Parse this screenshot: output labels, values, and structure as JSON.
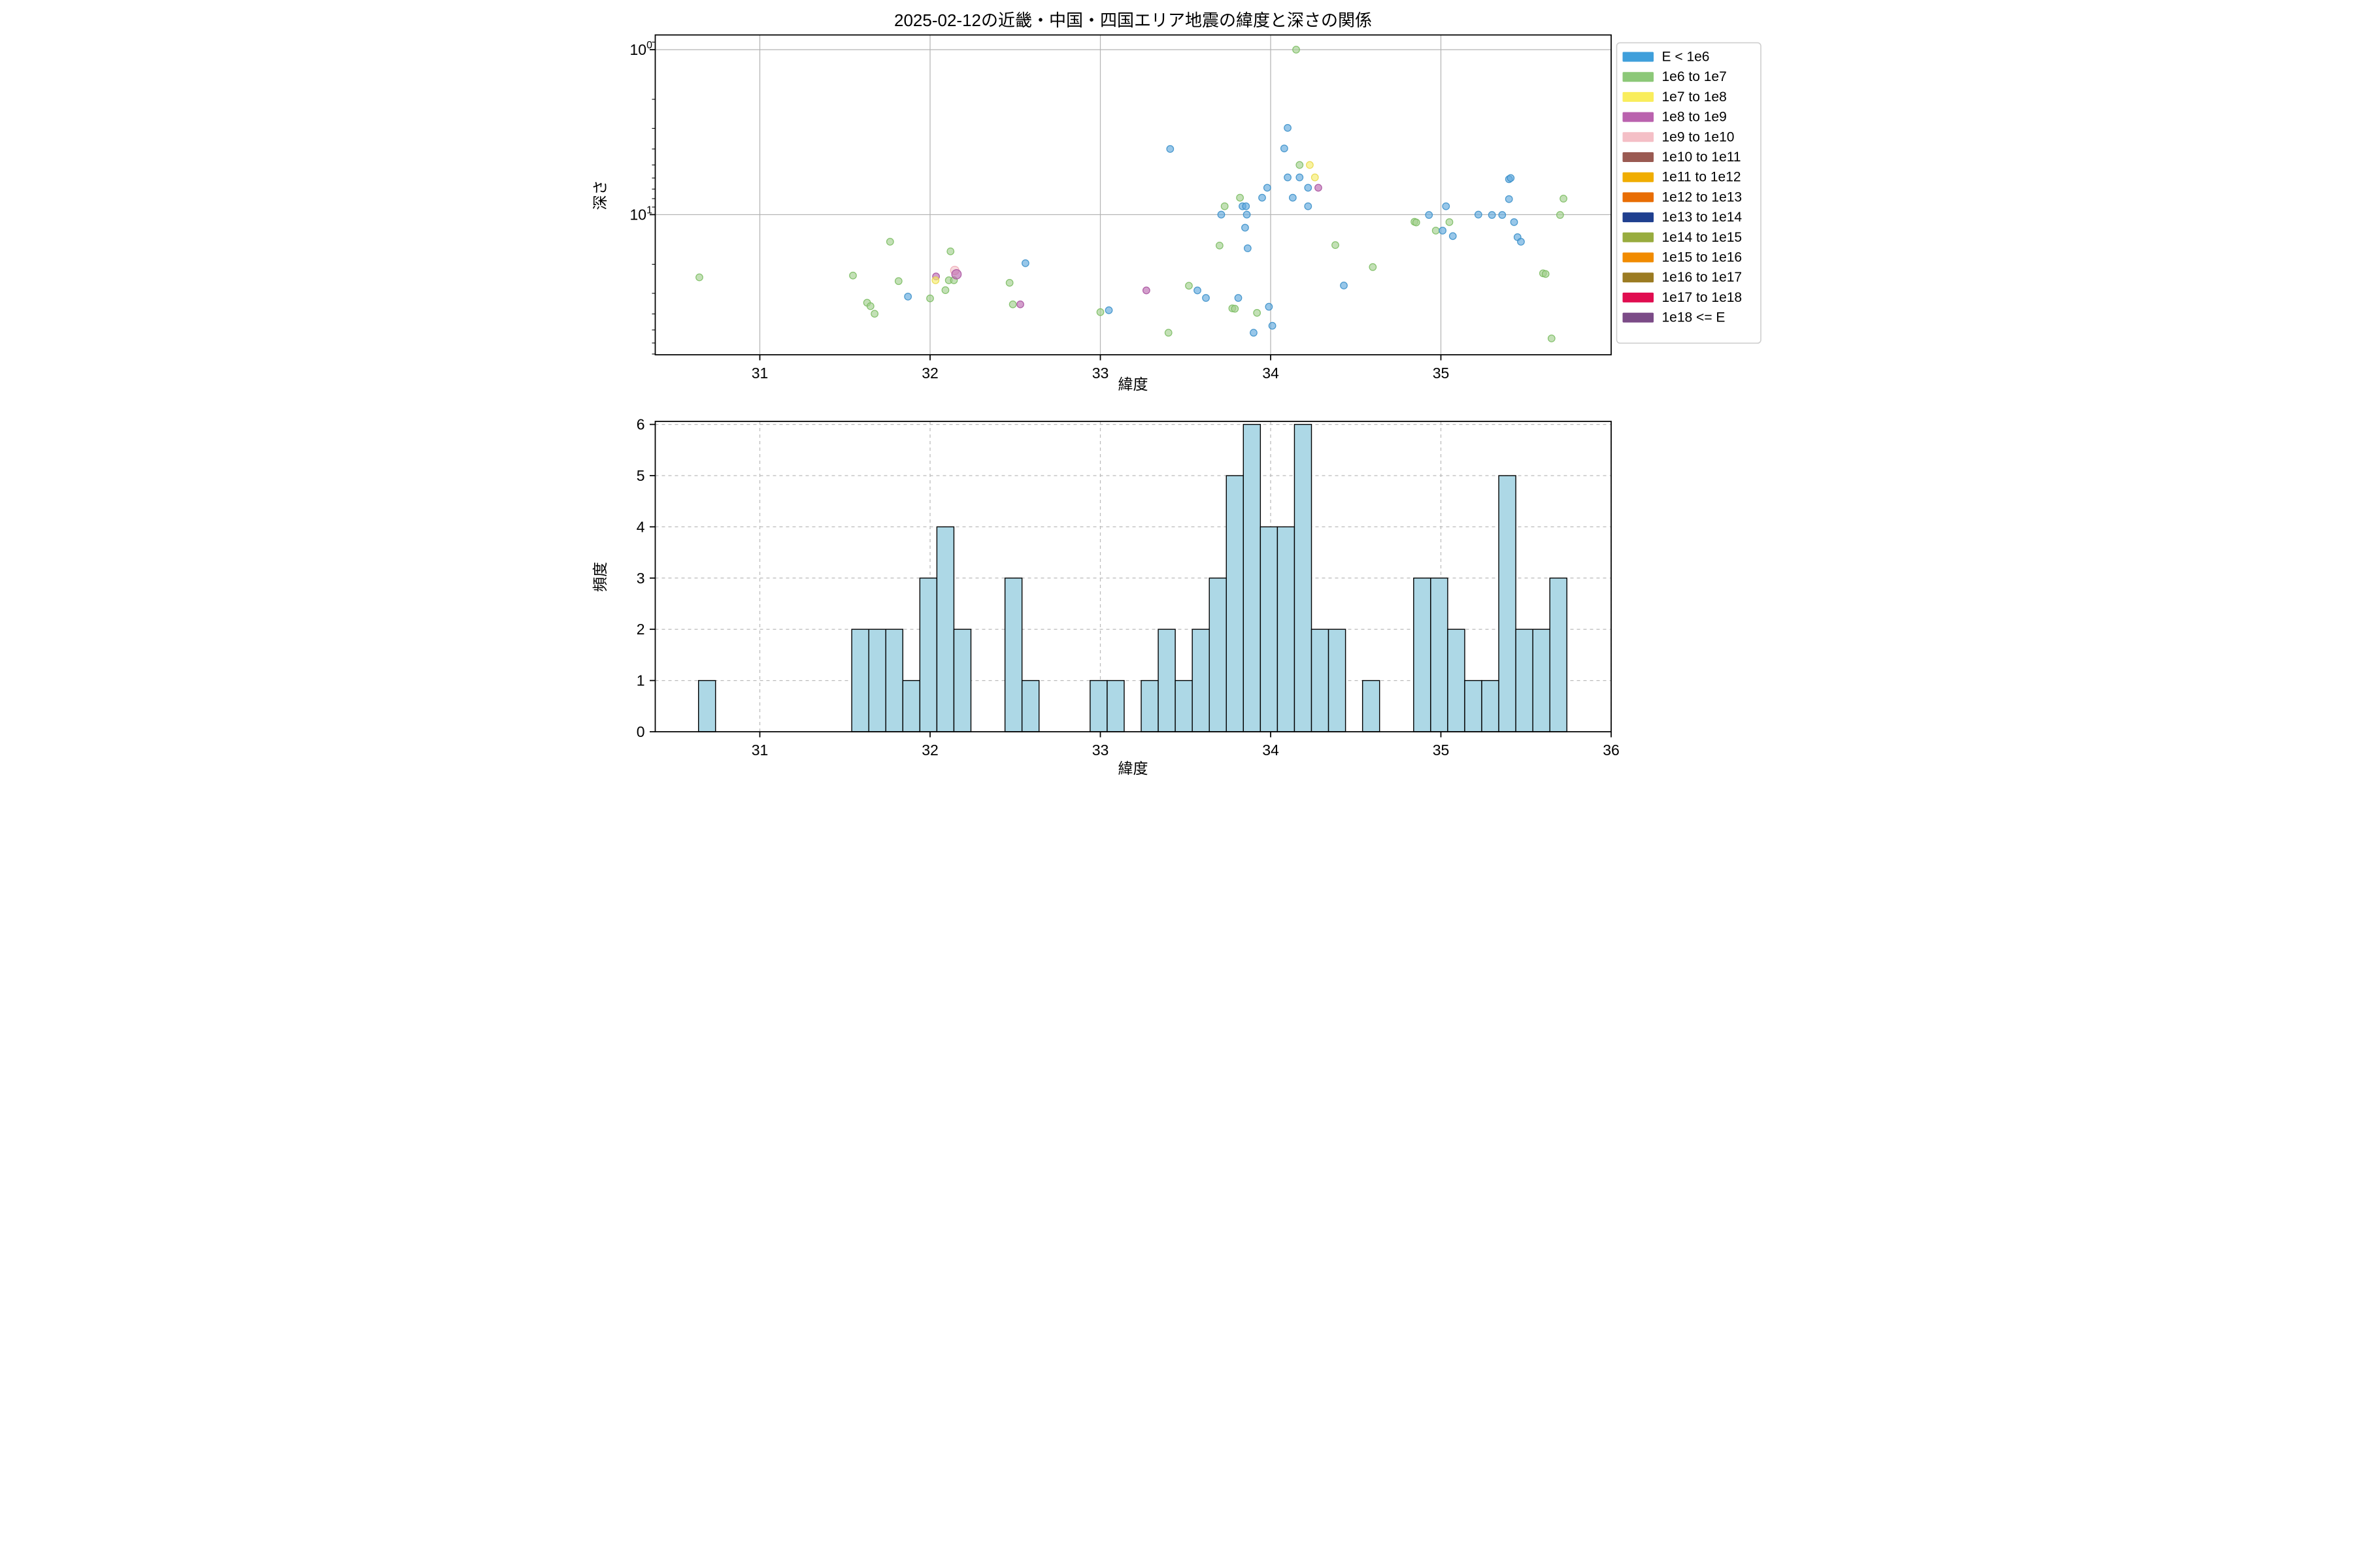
{
  "title": "2025-02-12の近畿・中国・四国エリア地震の緯度と深さの関係",
  "legend": {
    "items": [
      {
        "label": "E < 1e6",
        "color": "#3F9FDB"
      },
      {
        "label": "1e6 to 1e7",
        "color": "#8CC878"
      },
      {
        "label": "1e7 to 1e8",
        "color": "#F9ED5C"
      },
      {
        "label": "1e8 to 1e9",
        "color": "#BA62AE"
      },
      {
        "label": "1e9 to 1e10",
        "color": "#F4BFC6"
      },
      {
        "label": "1e10 to 1e11",
        "color": "#9A5A52"
      },
      {
        "label": "1e11 to 1e12",
        "color": "#F0AD01"
      },
      {
        "label": "1e12 to 1e13",
        "color": "#E86D04"
      },
      {
        "label": "1e13 to 1e14",
        "color": "#1F3F8F"
      },
      {
        "label": "1e14 to 1e15",
        "color": "#98AC3F"
      },
      {
        "label": "1e15 to 1e16",
        "color": "#F18B00"
      },
      {
        "label": "1e16 to 1e17",
        "color": "#9B7B22"
      },
      {
        "label": "1e17 to 1e18",
        "color": "#E00D50"
      },
      {
        "label": "1e18 <= E",
        "color": "#7B4B87"
      }
    ]
  },
  "marker_styles": {
    "b": {
      "label": "E < 1e6",
      "fill": "#61A9DD",
      "edge": "#3A8FC9"
    },
    "g": {
      "label": "1e6 to 1e7",
      "fill": "#A3D08F",
      "edge": "#7BBC62"
    },
    "y": {
      "label": "1e7 to 1e8",
      "fill": "#F6EC6B",
      "edge": "#E8D84B"
    },
    "m": {
      "label": "1e8 to 1e9",
      "fill": "#BB6BB1",
      "edge": "#A9519F"
    },
    "p": {
      "label": "1e9 to 1e10",
      "fill": "#F5C6CC",
      "edge": "#EFAAB5"
    }
  },
  "chart_data": [
    {
      "type": "scatter",
      "name": "latitude-vs-depth",
      "xlabel": "緯度",
      "ylabel": "深さ",
      "xlim": [
        30.386,
        35.99
      ],
      "yscale": "log",
      "y_inverted": true,
      "ylim": [
        0.815,
        70.6
      ],
      "x_ticks": [
        31,
        32,
        33,
        34,
        35
      ],
      "y_major_ticks": [
        1,
        10
      ],
      "y_minor_ticks": [
        0.9,
        2,
        3,
        4,
        5,
        6,
        7,
        8,
        9,
        20,
        30,
        40,
        50,
        60,
        70
      ],
      "grid": true,
      "legend_position": "outside-right",
      "points": [
        [
          30.645,
          24.0,
          "g"
        ],
        [
          31.547,
          23.4,
          "g"
        ],
        [
          31.63,
          34.2,
          "g"
        ],
        [
          31.65,
          35.9,
          "g"
        ],
        [
          31.674,
          39.9,
          "g"
        ],
        [
          31.765,
          14.6,
          "g"
        ],
        [
          31.815,
          25.3,
          "g"
        ],
        [
          31.87,
          31.4,
          "b"
        ],
        [
          32.0,
          32.2,
          "g"
        ],
        [
          32.035,
          23.7,
          "m"
        ],
        [
          32.032,
          25.0,
          "y"
        ],
        [
          32.09,
          28.7,
          "g"
        ],
        [
          32.11,
          25.0,
          "g"
        ],
        [
          32.12,
          16.7,
          "g"
        ],
        [
          32.145,
          21.8,
          "p",
          13
        ],
        [
          32.14,
          25.0,
          "g"
        ],
        [
          32.155,
          23.0,
          "m",
          14.5
        ],
        [
          32.467,
          25.9,
          "g"
        ],
        [
          32.486,
          35.0,
          "g"
        ],
        [
          32.53,
          35.0,
          "m"
        ],
        [
          32.56,
          19.7,
          "b"
        ],
        [
          33.0,
          39.0,
          "g"
        ],
        [
          33.05,
          38.0,
          "b"
        ],
        [
          33.27,
          28.8,
          "m"
        ],
        [
          33.4,
          52.0,
          "g"
        ],
        [
          33.41,
          4.0,
          "b"
        ],
        [
          33.52,
          27.0,
          "g"
        ],
        [
          33.57,
          28.8,
          "b"
        ],
        [
          33.62,
          32.0,
          "b"
        ],
        [
          33.7,
          15.4,
          "g"
        ],
        [
          33.71,
          10.0,
          "b"
        ],
        [
          33.73,
          8.9,
          "g"
        ],
        [
          33.775,
          37.0,
          "g"
        ],
        [
          33.79,
          37.2,
          "g"
        ],
        [
          33.81,
          32.0,
          "b"
        ],
        [
          33.82,
          7.9,
          "g"
        ],
        [
          33.835,
          8.9,
          "b"
        ],
        [
          33.85,
          12.0,
          "b"
        ],
        [
          33.855,
          8.9,
          "b"
        ],
        [
          33.86,
          10.0,
          "b"
        ],
        [
          33.865,
          16.0,
          "b"
        ],
        [
          33.9,
          52.0,
          "b"
        ],
        [
          33.92,
          39.4,
          "g"
        ],
        [
          33.95,
          7.9,
          "b"
        ],
        [
          33.98,
          6.87,
          "b"
        ],
        [
          33.99,
          36.2,
          "b"
        ],
        [
          34.01,
          47.2,
          "b"
        ],
        [
          34.08,
          3.97,
          "b"
        ],
        [
          34.1,
          2.98,
          "b"
        ],
        [
          34.1,
          5.95,
          "b"
        ],
        [
          34.13,
          7.9,
          "b"
        ],
        [
          34.15,
          1.0,
          "g"
        ],
        [
          34.17,
          5.0,
          "g"
        ],
        [
          34.17,
          5.95,
          "b"
        ],
        [
          34.22,
          6.87,
          "b"
        ],
        [
          34.22,
          8.9,
          "b"
        ],
        [
          34.23,
          5.0,
          "y"
        ],
        [
          34.26,
          5.95,
          "y"
        ],
        [
          34.28,
          6.87,
          "m"
        ],
        [
          34.38,
          15.3,
          "g"
        ],
        [
          34.43,
          26.9,
          "b"
        ],
        [
          34.6,
          20.8,
          "g"
        ],
        [
          34.845,
          11.05,
          "g"
        ],
        [
          34.855,
          11.15,
          "g"
        ],
        [
          34.93,
          10.05,
          "b"
        ],
        [
          34.97,
          12.5,
          "g"
        ],
        [
          35.01,
          12.5,
          "b"
        ],
        [
          35.03,
          8.9,
          "b"
        ],
        [
          35.05,
          11.1,
          "g"
        ],
        [
          35.07,
          13.5,
          "b"
        ],
        [
          35.22,
          10.0,
          "b"
        ],
        [
          35.3,
          10.05,
          "b"
        ],
        [
          35.36,
          10.05,
          "b"
        ],
        [
          35.4,
          8.05,
          "b"
        ],
        [
          35.4,
          6.1,
          "b"
        ],
        [
          35.41,
          6.0,
          "b"
        ],
        [
          35.43,
          11.1,
          "b"
        ],
        [
          35.45,
          13.7,
          "b"
        ],
        [
          35.47,
          14.6,
          "b"
        ],
        [
          35.6,
          22.7,
          "g"
        ],
        [
          35.615,
          22.9,
          "g"
        ],
        [
          35.65,
          56.3,
          "g"
        ],
        [
          35.7,
          10.05,
          "g"
        ],
        [
          35.72,
          8.0,
          "g"
        ]
      ]
    },
    {
      "type": "histogram",
      "name": "latitude-frequency",
      "xlabel": "緯度",
      "ylabel": "頻度",
      "xlim": [
        30.386,
        36.0
      ],
      "ylim": [
        0,
        6.05
      ],
      "x_ticks": [
        31,
        32,
        33,
        34,
        35,
        36
      ],
      "y_ticks": [
        0,
        1,
        2,
        3,
        4,
        5,
        6
      ],
      "grid": "dashed",
      "bin_width": 0.1,
      "bar_color": "#ADD8E6",
      "bar_edge_color": "#000000",
      "bins": [
        [
          30.64,
          1
        ],
        [
          31.54,
          2
        ],
        [
          31.64,
          2
        ],
        [
          31.74,
          2
        ],
        [
          31.84,
          1
        ],
        [
          31.94,
          3
        ],
        [
          32.04,
          4
        ],
        [
          32.14,
          2
        ],
        [
          32.44,
          3
        ],
        [
          32.54,
          1
        ],
        [
          32.94,
          1
        ],
        [
          33.04,
          1
        ],
        [
          33.24,
          1
        ],
        [
          33.34,
          2
        ],
        [
          33.44,
          1
        ],
        [
          33.54,
          2
        ],
        [
          33.64,
          3
        ],
        [
          33.74,
          5
        ],
        [
          33.84,
          6
        ],
        [
          33.94,
          4
        ],
        [
          34.04,
          4
        ],
        [
          34.14,
          6
        ],
        [
          34.24,
          2
        ],
        [
          34.34,
          2
        ],
        [
          34.54,
          1
        ],
        [
          34.84,
          3
        ],
        [
          34.94,
          3
        ],
        [
          35.04,
          2
        ],
        [
          35.14,
          1
        ],
        [
          35.24,
          1
        ],
        [
          35.34,
          5
        ],
        [
          35.44,
          2
        ],
        [
          35.54,
          2
        ],
        [
          35.64,
          3
        ]
      ]
    }
  ],
  "style_colors": {
    "grid_solid": "#b5b5b5",
    "grid_dashed": "#bbbbbb",
    "spine": "#000000",
    "legend_border": "#cccccc"
  }
}
